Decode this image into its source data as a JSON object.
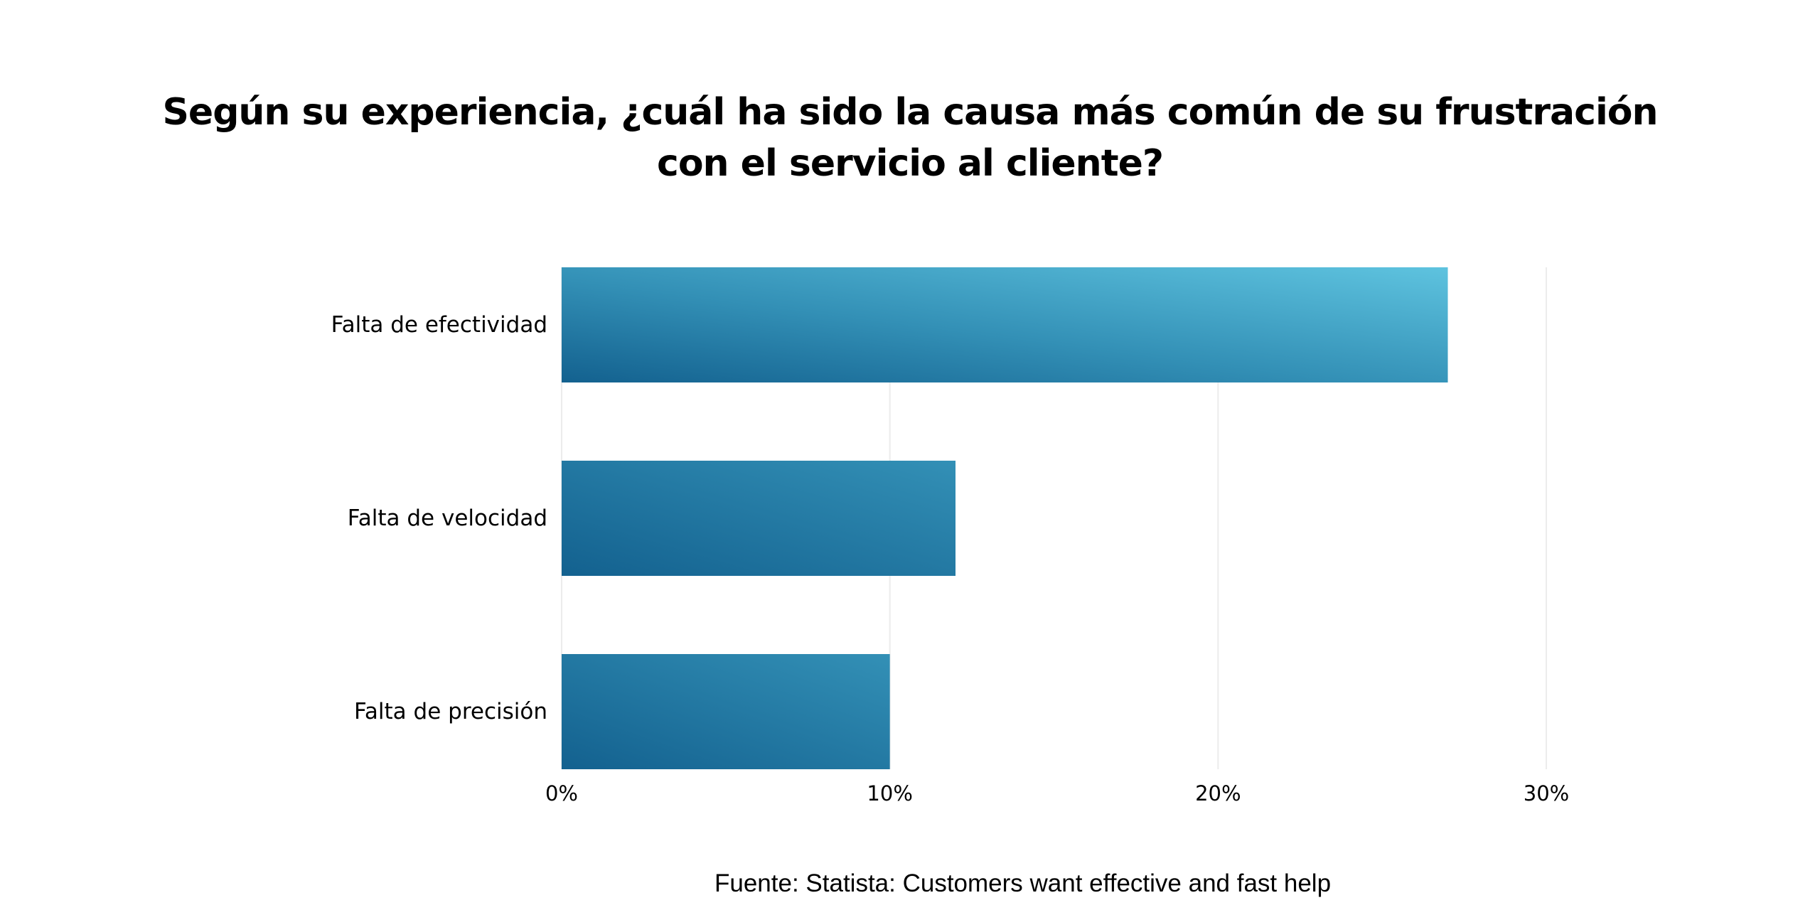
{
  "chart_data": {
    "type": "bar",
    "orientation": "horizontal",
    "title": "Según su experiencia, ¿cuál ha sido la causa más común de su frustración con el servicio al cliente?",
    "categories": [
      "Falta de efectividad",
      "Falta de velocidad",
      "Falta de precisión"
    ],
    "values": [
      27,
      12,
      10
    ],
    "unit": "%",
    "xlim": [
      0,
      30
    ],
    "x_ticks": [
      0,
      10,
      20,
      30
    ],
    "x_tick_labels": [
      "0%",
      "10%",
      "20%",
      "30%"
    ],
    "grid": true,
    "colors": {
      "bar_dark": "#13618f",
      "bar_mid": "#3390b6",
      "bar_light": "#5ec3df",
      "grid": "#ececec",
      "text": "#000000"
    },
    "source": "Fuente: Statista: Customers want effective and fast help"
  }
}
